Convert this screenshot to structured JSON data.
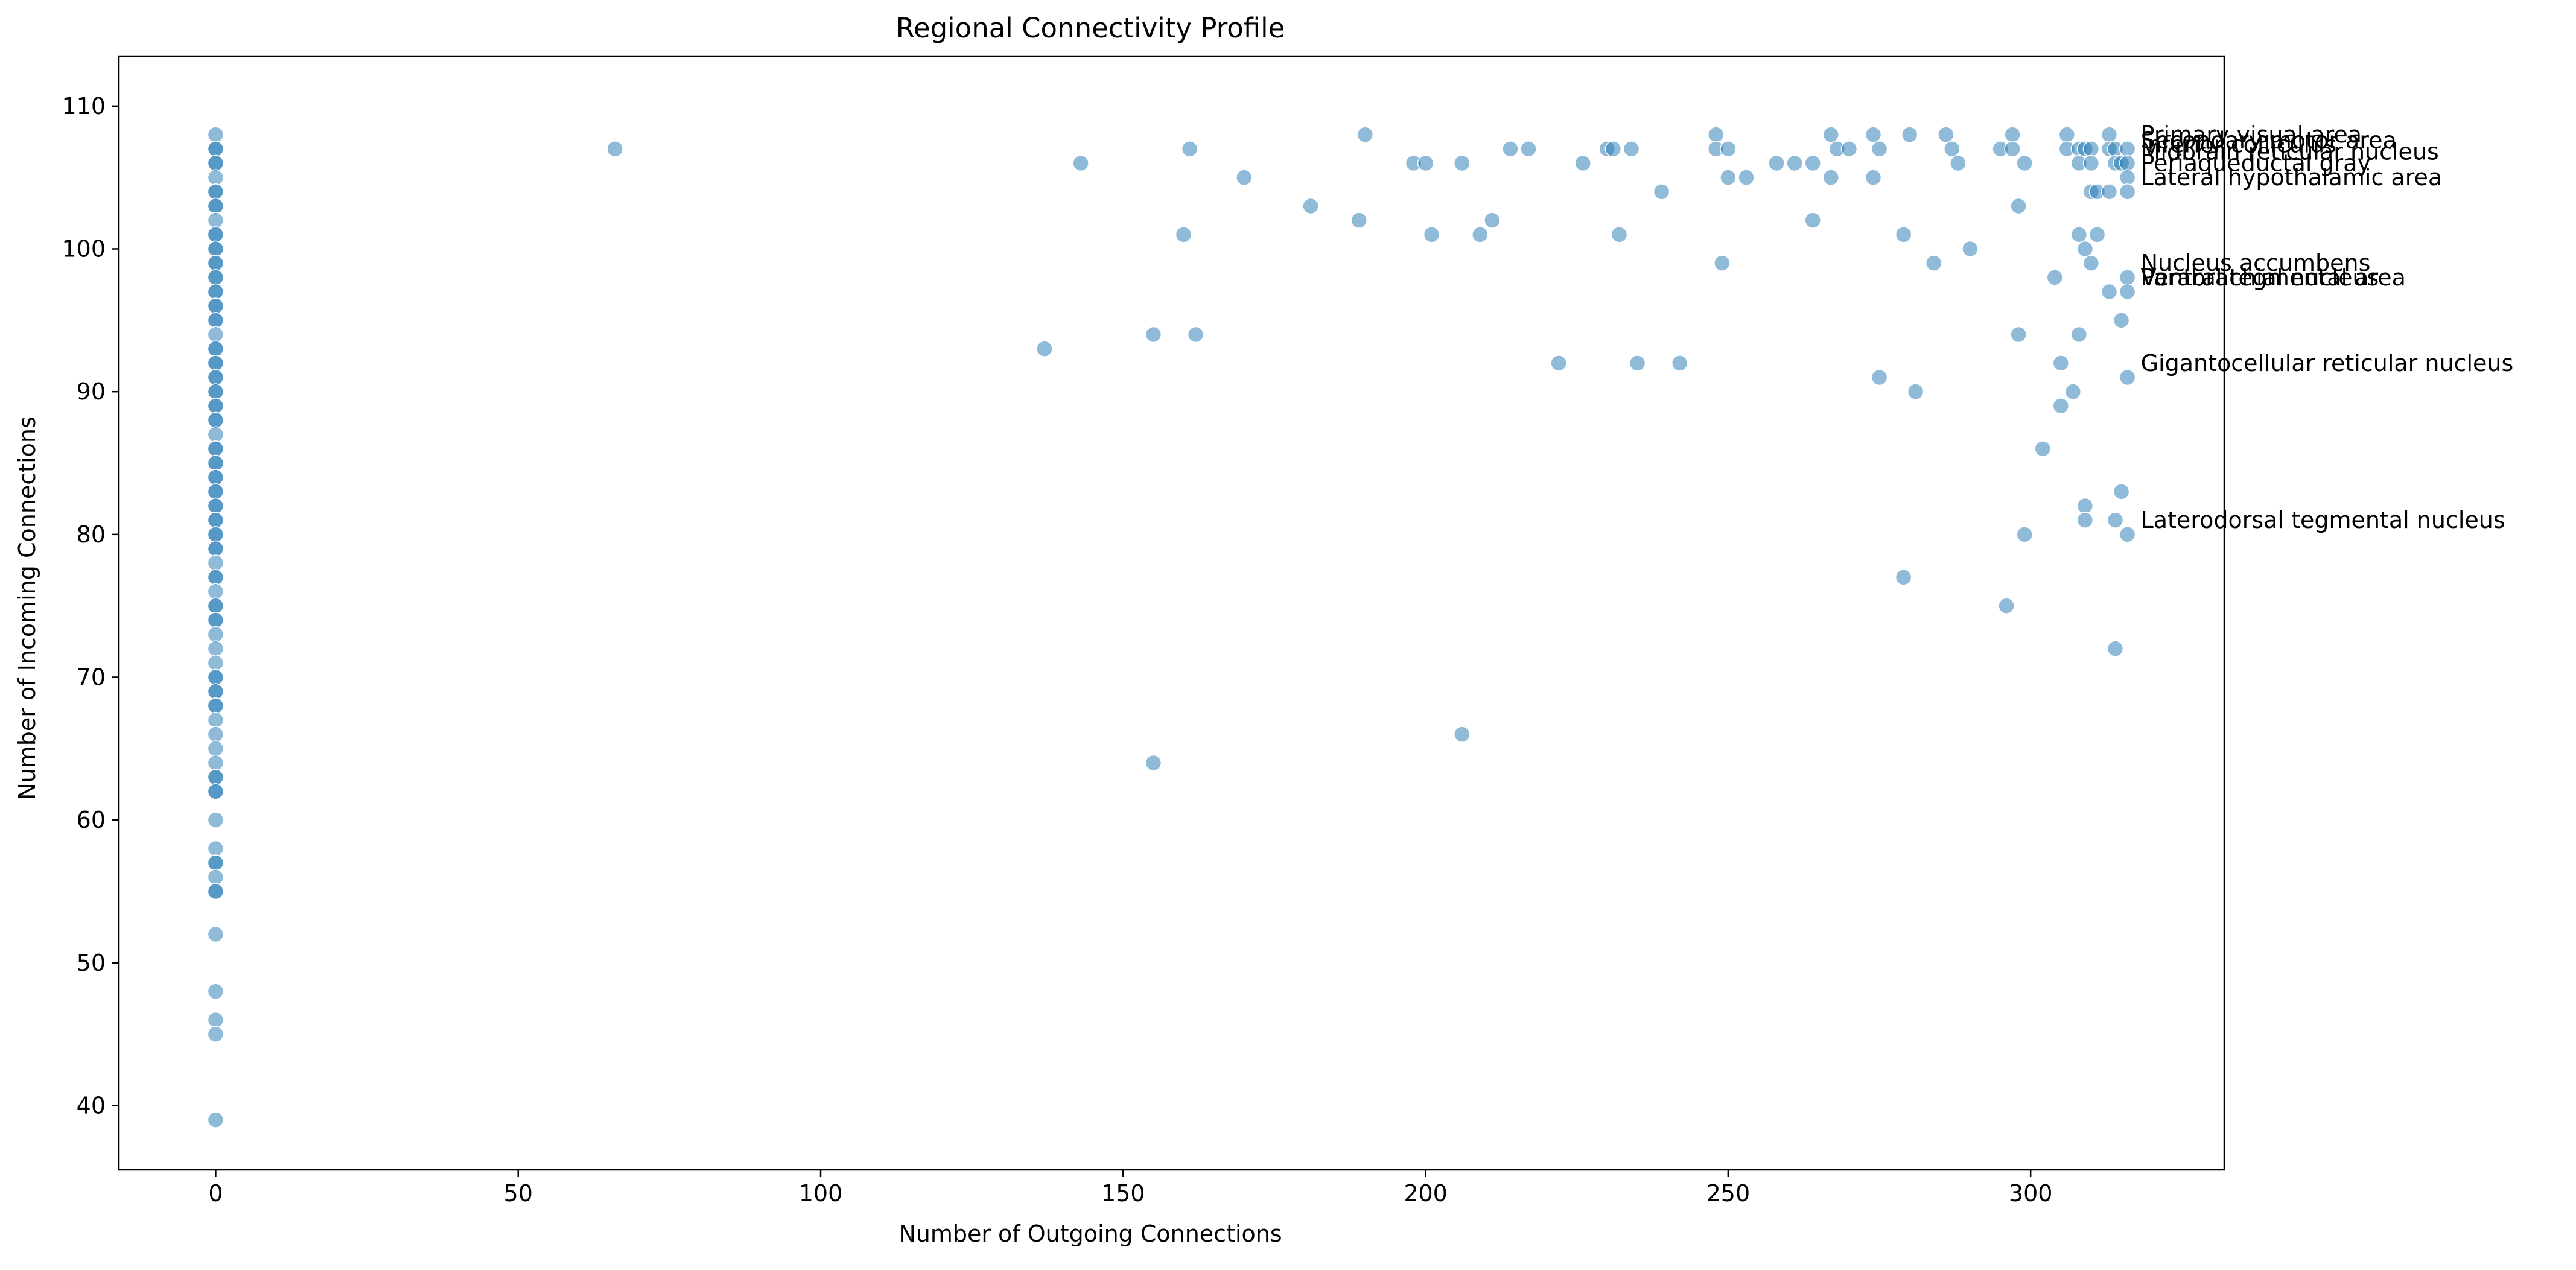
{
  "colors": {
    "point": "#1f77b4",
    "axis": "#000000",
    "background": "#ffffff"
  },
  "chart_data": {
    "type": "scatter",
    "title": "Regional Connectivity Profile",
    "xlabel": "Number of Outgoing Connections",
    "ylabel": "Number of Incoming Connections",
    "xlim": [
      -16,
      332
    ],
    "ylim": [
      35.5,
      113.5
    ],
    "xticks": [
      0,
      50,
      100,
      150,
      200,
      250,
      300
    ],
    "yticks": [
      40,
      50,
      60,
      70,
      80,
      90,
      100,
      110
    ],
    "grid": false,
    "legend": "none",
    "points": [
      [
        0,
        108
      ],
      [
        0,
        107
      ],
      [
        0,
        107
      ],
      [
        0,
        106
      ],
      [
        0,
        106
      ],
      [
        0,
        105
      ],
      [
        0,
        104
      ],
      [
        0,
        104
      ],
      [
        0,
        103
      ],
      [
        0,
        103
      ],
      [
        0,
        102
      ],
      [
        0,
        101
      ],
      [
        0,
        101
      ],
      [
        0,
        100
      ],
      [
        0,
        100
      ],
      [
        0,
        99
      ],
      [
        0,
        99
      ],
      [
        0,
        98
      ],
      [
        0,
        98
      ],
      [
        0,
        97
      ],
      [
        0,
        97
      ],
      [
        0,
        96
      ],
      [
        0,
        96
      ],
      [
        0,
        95
      ],
      [
        0,
        95
      ],
      [
        0,
        94
      ],
      [
        0,
        93
      ],
      [
        0,
        93
      ],
      [
        0,
        92
      ],
      [
        0,
        92
      ],
      [
        0,
        91
      ],
      [
        0,
        91
      ],
      [
        0,
        90
      ],
      [
        0,
        90
      ],
      [
        0,
        89
      ],
      [
        0,
        89
      ],
      [
        0,
        88
      ],
      [
        0,
        88
      ],
      [
        0,
        87
      ],
      [
        0,
        86
      ],
      [
        0,
        86
      ],
      [
        0,
        85
      ],
      [
        0,
        85
      ],
      [
        0,
        84
      ],
      [
        0,
        84
      ],
      [
        0,
        83
      ],
      [
        0,
        83
      ],
      [
        0,
        82
      ],
      [
        0,
        82
      ],
      [
        0,
        81
      ],
      [
        0,
        81
      ],
      [
        0,
        80
      ],
      [
        0,
        80
      ],
      [
        0,
        79
      ],
      [
        0,
        79
      ],
      [
        0,
        78
      ],
      [
        0,
        77
      ],
      [
        0,
        77
      ],
      [
        0,
        76
      ],
      [
        0,
        75
      ],
      [
        0,
        75
      ],
      [
        0,
        74
      ],
      [
        0,
        74
      ],
      [
        0,
        73
      ],
      [
        0,
        72
      ],
      [
        0,
        71
      ],
      [
        0,
        70
      ],
      [
        0,
        70
      ],
      [
        0,
        69
      ],
      [
        0,
        69
      ],
      [
        0,
        68
      ],
      [
        0,
        68
      ],
      [
        0,
        67
      ],
      [
        0,
        66
      ],
      [
        0,
        65
      ],
      [
        0,
        64
      ],
      [
        0,
        63
      ],
      [
        0,
        63
      ],
      [
        0,
        62
      ],
      [
        0,
        62
      ],
      [
        0,
        60
      ],
      [
        0,
        58
      ],
      [
        0,
        57
      ],
      [
        0,
        57
      ],
      [
        0,
        56
      ],
      [
        0,
        55
      ],
      [
        0,
        55
      ],
      [
        0,
        52
      ],
      [
        0,
        48
      ],
      [
        0,
        46
      ],
      [
        0,
        45
      ],
      [
        0,
        39
      ],
      [
        66,
        107
      ],
      [
        137,
        93
      ],
      [
        143,
        106
      ],
      [
        155,
        94
      ],
      [
        155,
        64
      ],
      [
        160,
        101
      ],
      [
        161,
        107
      ],
      [
        162,
        94
      ],
      [
        170,
        105
      ],
      [
        181,
        103
      ],
      [
        189,
        102
      ],
      [
        190,
        108
      ],
      [
        198,
        106
      ],
      [
        200,
        106
      ],
      [
        201,
        101
      ],
      [
        206,
        106
      ],
      [
        206,
        66
      ],
      [
        209,
        101
      ],
      [
        211,
        102
      ],
      [
        214,
        107
      ],
      [
        217,
        107
      ],
      [
        222,
        92
      ],
      [
        226,
        106
      ],
      [
        230,
        107
      ],
      [
        231,
        107
      ],
      [
        232,
        101
      ],
      [
        234,
        107
      ],
      [
        235,
        92
      ],
      [
        239,
        104
      ],
      [
        242,
        92
      ],
      [
        248,
        108
      ],
      [
        248,
        107
      ],
      [
        249,
        99
      ],
      [
        250,
        107
      ],
      [
        250,
        105
      ],
      [
        253,
        105
      ],
      [
        258,
        106
      ],
      [
        261,
        106
      ],
      [
        264,
        106
      ],
      [
        264,
        102
      ],
      [
        267,
        108
      ],
      [
        267,
        105
      ],
      [
        268,
        107
      ],
      [
        270,
        107
      ],
      [
        274,
        108
      ],
      [
        274,
        105
      ],
      [
        275,
        107
      ],
      [
        275,
        91
      ],
      [
        279,
        101
      ],
      [
        279,
        77
      ],
      [
        280,
        108
      ],
      [
        281,
        90
      ],
      [
        284,
        99
      ],
      [
        286,
        108
      ],
      [
        287,
        107
      ],
      [
        288,
        106
      ],
      [
        290,
        100
      ],
      [
        295,
        107
      ],
      [
        296,
        75
      ],
      [
        297,
        108
      ],
      [
        297,
        107
      ],
      [
        298,
        103
      ],
      [
        298,
        94
      ],
      [
        299,
        106
      ],
      [
        299,
        80
      ],
      [
        302,
        86
      ],
      [
        304,
        98
      ],
      [
        305,
        92
      ],
      [
        305,
        89
      ],
      [
        306,
        108
      ],
      [
        306,
        107
      ],
      [
        307,
        90
      ],
      [
        308,
        107
      ],
      [
        308,
        106
      ],
      [
        308,
        101
      ],
      [
        308,
        94
      ],
      [
        309,
        107
      ],
      [
        309,
        100
      ],
      [
        309,
        82
      ],
      [
        309,
        81
      ],
      [
        310,
        107
      ],
      [
        310,
        106
      ],
      [
        310,
        104
      ],
      [
        310,
        99
      ],
      [
        311,
        104
      ],
      [
        311,
        101
      ],
      [
        313,
        108
      ],
      [
        313,
        107
      ],
      [
        313,
        104
      ],
      [
        313,
        97
      ],
      [
        314,
        107
      ],
      [
        314,
        106
      ],
      [
        314,
        81
      ],
      [
        314,
        72
      ],
      [
        315,
        106
      ],
      [
        315,
        95
      ],
      [
        315,
        83
      ],
      [
        316,
        107
      ],
      [
        316,
        106
      ],
      [
        316,
        105
      ],
      [
        316,
        104
      ],
      [
        316,
        98
      ],
      [
        316,
        97
      ],
      [
        316,
        91
      ],
      [
        316,
        80
      ]
    ],
    "annotations": [
      {
        "text": "Primary visual area",
        "x": 316,
        "y": 108
      },
      {
        "text": "Secondary motor area",
        "x": 316,
        "y": 107.6
      },
      {
        "text": "Inferior colliculus",
        "x": 316,
        "y": 107.3
      },
      {
        "text": "Midbrain reticular nucleus",
        "x": 316,
        "y": 106.8
      },
      {
        "text": "Periaqueductal gray",
        "x": 316,
        "y": 106
      },
      {
        "text": "Lateral hypothalamic area",
        "x": 316,
        "y": 105
      },
      {
        "text": "Nucleus accumbens",
        "x": 316,
        "y": 99
      },
      {
        "text": "Ventral tegmental area",
        "x": 316,
        "y": 98
      },
      {
        "text": "Parabrachial nucleus",
        "x": 316,
        "y": 98
      },
      {
        "text": "Gigantocellular reticular nucleus",
        "x": 316,
        "y": 92
      },
      {
        "text": "Laterodorsal tegmental nucleus",
        "x": 316,
        "y": 81
      }
    ]
  }
}
